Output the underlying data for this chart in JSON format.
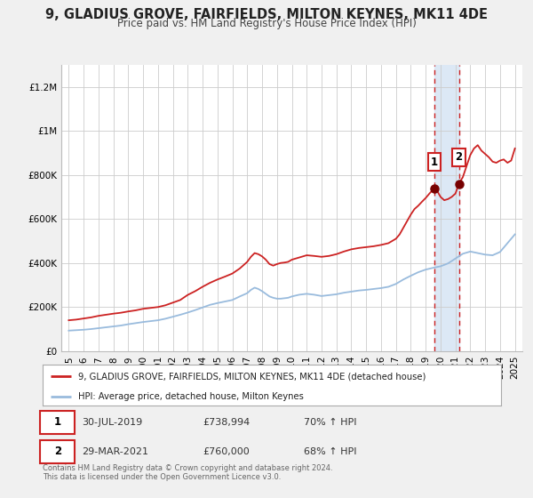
{
  "title": "9, GLADIUS GROVE, FAIRFIELDS, MILTON KEYNES, MK11 4DE",
  "subtitle": "Price paid vs. HM Land Registry's House Price Index (HPI)",
  "ylim": [
    0,
    1300000
  ],
  "xlim": [
    1994.5,
    2025.5
  ],
  "yticks": [
    0,
    200000,
    400000,
    600000,
    800000,
    1000000,
    1200000
  ],
  "ytick_labels": [
    "£0",
    "£200K",
    "£400K",
    "£600K",
    "£800K",
    "£1M",
    "£1.2M"
  ],
  "xticks": [
    1995,
    1996,
    1997,
    1998,
    1999,
    2000,
    2001,
    2002,
    2003,
    2004,
    2005,
    2006,
    2007,
    2008,
    2009,
    2010,
    2011,
    2012,
    2013,
    2014,
    2015,
    2016,
    2017,
    2018,
    2019,
    2020,
    2021,
    2022,
    2023,
    2024,
    2025
  ],
  "bg_color": "#f0f0f0",
  "plot_bg_color": "#ffffff",
  "grid_color": "#cccccc",
  "red_line_color": "#cc2222",
  "blue_line_color": "#99bbdd",
  "marker_color": "#770000",
  "vline_color": "#cc2222",
  "highlight_bg": "#dce8f5",
  "title_fontsize": 10.5,
  "subtitle_fontsize": 8.5,
  "tick_fontsize": 7.5,
  "sale1_x": 2019.58,
  "sale1_y": 738994,
  "sale2_x": 2021.24,
  "sale2_y": 760000,
  "footnote": "Contains HM Land Registry data © Crown copyright and database right 2024.\nThis data is licensed under the Open Government Licence v3.0.",
  "legend_line1": "9, GLADIUS GROVE, FAIRFIELDS, MILTON KEYNES, MK11 4DE (detached house)",
  "legend_line2": "HPI: Average price, detached house, Milton Keynes",
  "table_row1": [
    "1",
    "30-JUL-2019",
    "£738,994",
    "70% ↑ HPI"
  ],
  "table_row2": [
    "2",
    "29-MAR-2021",
    "£760,000",
    "68% ↑ HPI"
  ]
}
